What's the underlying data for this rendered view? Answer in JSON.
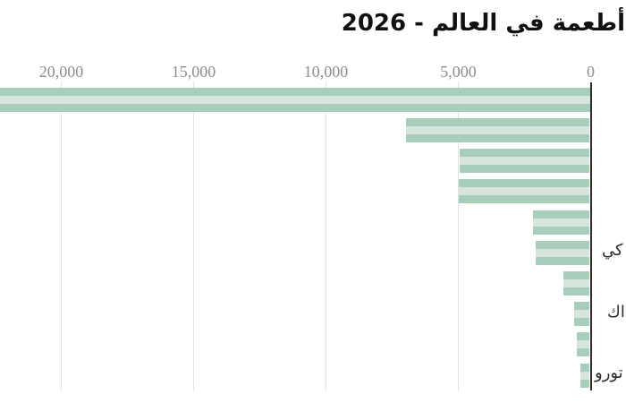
{
  "page": {
    "background_color": "#ffffff"
  },
  "chart_data": {
    "type": "bar",
    "orientation": "horizontal",
    "direction": "rtl",
    "title": "أطعمة في العالم - 2026",
    "xlabel": "",
    "ylabel": "",
    "x_axis": {
      "range": [
        0,
        20000
      ],
      "zero_on_right": true,
      "ticks": [
        {
          "value": 20000,
          "label": "20,000"
        },
        {
          "value": 15000,
          "label": "15,000"
        },
        {
          "value": 10000,
          "label": "10,000"
        },
        {
          "value": 5000,
          "label": "5,000"
        },
        {
          "value": 0,
          "label": "0"
        }
      ],
      "gridlines": true
    },
    "series": [
      {
        "name": "values",
        "values": [
          22300,
          6950,
          4900,
          4950,
          2150,
          2050,
          980,
          575,
          500,
          340
        ]
      }
    ],
    "first_bar_clipped_at_left_edge": true,
    "category_labels_mostly_cut_off_at_right_edge": true,
    "visible_category_label_fragments": [
      {
        "row": 5,
        "text": "كي"
      },
      {
        "row": 7,
        "text": "اك"
      },
      {
        "row": 9,
        "text": "تورو"
      }
    ],
    "colors": {
      "bar_stripe_dark": "#a8cebb",
      "bar_stripe_light": "#d7e5dd",
      "gridline": "#e3e3e3",
      "axis_line": "#2d2d2d",
      "tick_text": "#8e8e8e",
      "title_text": "#111111",
      "category_label_text": "#2b2b2b"
    }
  }
}
